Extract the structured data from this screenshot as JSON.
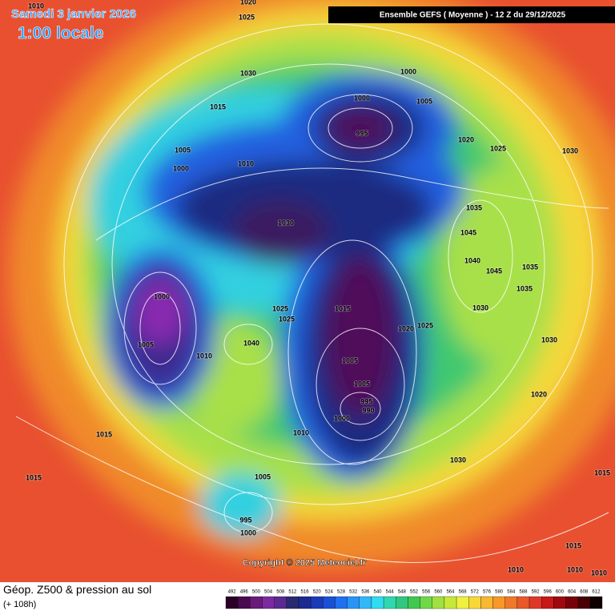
{
  "header": {
    "date": "Samedi 3 janvier 2026",
    "time": "1:00 locale",
    "model": "Ensemble GEFS  ( Moyenne )  -  12 Z du 29/12/2025"
  },
  "copyright": "Copyright © 2025 Meteociel.fr",
  "footer": {
    "title": "Géop. Z500 & pression au sol",
    "lead": "(+ 108h)"
  },
  "isobar_labels": [
    1010,
    1020,
    1025,
    1030,
    1000,
    1015,
    1000,
    1005,
    995,
    1020,
    1025,
    1030,
    1005,
    1000,
    1010,
    1030,
    1035,
    1045,
    1040,
    1045,
    1035,
    1035,
    1000,
    1030,
    1025,
    1025,
    1015,
    1020,
    1025,
    1005,
    1030,
    1040,
    1010,
    1005,
    1005,
    995,
    990,
    1000,
    1020,
    1015,
    1010,
    1030,
    1015,
    1005,
    995,
    1000,
    1015,
    1015,
    1010,
    1010,
    1010
  ],
  "colorbar": {
    "labels": [
      492,
      496,
      500,
      504,
      508,
      512,
      516,
      520,
      524,
      528,
      532,
      536,
      540,
      544,
      548,
      552,
      556,
      560,
      564,
      568,
      572,
      576,
      580,
      584,
      588,
      592,
      596,
      600,
      604,
      608,
      612
    ],
    "colors": [
      "#2a0028",
      "#4a0a50",
      "#6a1a78",
      "#7c2aa0",
      "#5a2a90",
      "#2a2a70",
      "#1a2a90",
      "#1a3ab8",
      "#1a50d8",
      "#2070f0",
      "#2894f8",
      "#30b8f8",
      "#30dcf0",
      "#30d8b0",
      "#30c880",
      "#40c850",
      "#70d848",
      "#a0e040",
      "#c8e838",
      "#f0f040",
      "#f8d838",
      "#f8b830",
      "#f89828",
      "#f07828",
      "#e85828",
      "#e03828",
      "#c81818",
      "#a00810",
      "#780008",
      "#480004",
      "#100000"
    ]
  }
}
